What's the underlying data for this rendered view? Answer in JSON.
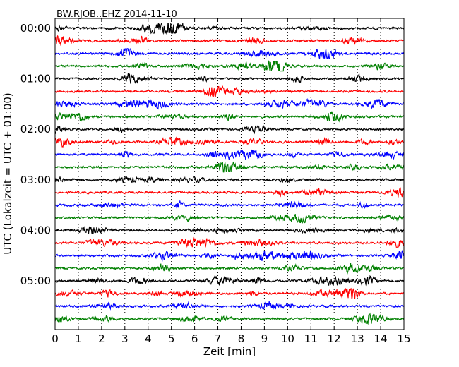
{
  "chart_data": {
    "type": "line",
    "title": "BW.RJOB..EHZ 2014-11-10",
    "xlabel": "Zeit  [min]",
    "ylabel": "UTC (Lokalzeit = UTC + 01:00)",
    "xlim": [
      0,
      15
    ],
    "x_ticks": [
      "0",
      "1",
      "2",
      "3",
      "4",
      "5",
      "6",
      "7",
      "8",
      "9",
      "10",
      "11",
      "12",
      "13",
      "14",
      "15"
    ],
    "y_ticks": [
      "00:00",
      "01:00",
      "02:00",
      "03:00",
      "04:00",
      "05:00"
    ],
    "trace_start_times": [
      "00:00",
      "00:15",
      "00:30",
      "00:45",
      "01:00",
      "01:15",
      "01:30",
      "01:45",
      "02:00",
      "02:15",
      "02:30",
      "02:45",
      "03:00",
      "03:15",
      "03:30",
      "03:45",
      "04:00",
      "04:15",
      "04:30",
      "04:45",
      "05:00",
      "05:15",
      "05:30",
      "05:45"
    ],
    "trace_colors": [
      "#000000",
      "#ff0000",
      "#0000ff",
      "#008000"
    ],
    "x_grid": "dotted"
  }
}
